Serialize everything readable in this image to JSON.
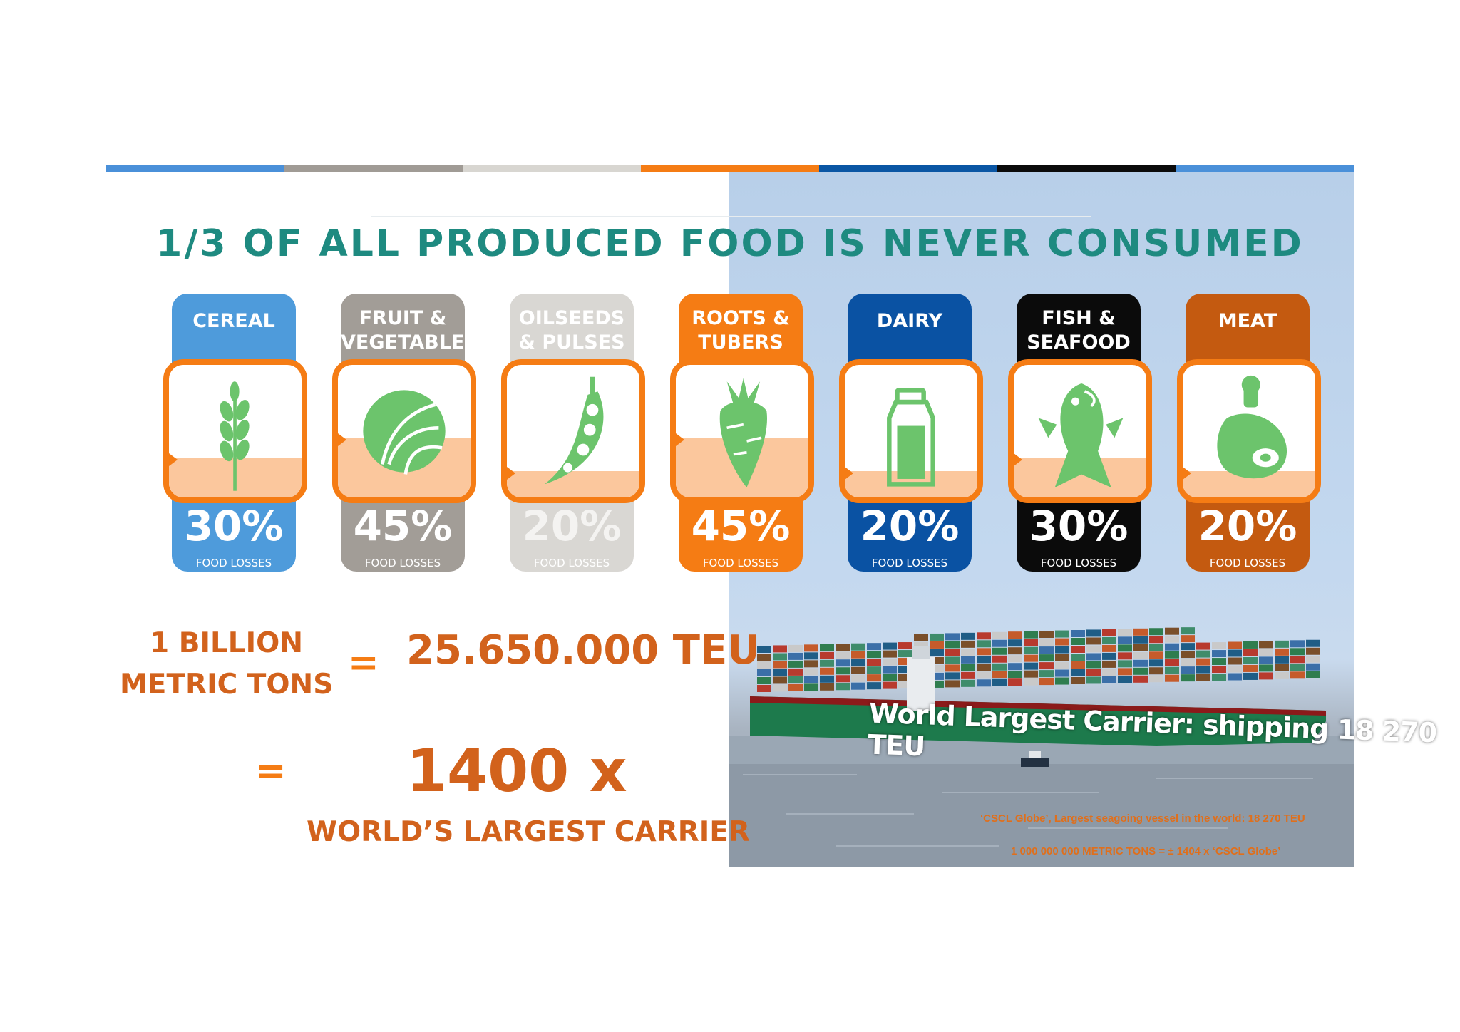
{
  "strip_colors": [
    "#4a90d9",
    "#a09b95",
    "#d8d6d1",
    "#f57c14",
    "#0a56a4",
    "#0b0b0b",
    "#4a90d9"
  ],
  "title": "1/3 OF ALL PRODUCED FOOD IS NEVER CONSUMED",
  "categories": [
    {
      "label_lines": [
        "CEREAL"
      ],
      "percent": "30%",
      "sublabel": "FOOD LOSSES",
      "color": "#4e9bdb",
      "icon": "wheat-icon"
    },
    {
      "label_lines": [
        "FRUIT &",
        "VEGETABLES"
      ],
      "percent": "45%",
      "sublabel": "FOOD LOSSES",
      "color": "#a29d97",
      "icon": "lettuce-icon"
    },
    {
      "label_lines": [
        "OILSEEDS",
        "& PULSES"
      ],
      "percent": "20%",
      "sublabel": "FOOD LOSSES",
      "color": "#d9d7d3",
      "icon": "pea-pod-icon"
    },
    {
      "label_lines": [
        "ROOTS &",
        "TUBERS"
      ],
      "percent": "45%",
      "sublabel": "FOOD LOSSES",
      "color": "#f57c14",
      "icon": "carrot-icon"
    },
    {
      "label_lines": [
        "DAIRY"
      ],
      "percent": "20%",
      "sublabel": "FOOD LOSSES",
      "color": "#0a52a3",
      "icon": "milk-bottle-icon"
    },
    {
      "label_lines": [
        "FISH &",
        "SEAFOOD"
      ],
      "percent": "30%",
      "sublabel": "FOOD LOSSES",
      "color": "#0b0b0b",
      "icon": "fish-icon"
    },
    {
      "label_lines": [
        "MEAT"
      ],
      "percent": "20%",
      "sublabel": "FOOD LOSSES",
      "color": "#c45a10",
      "icon": "ham-icon"
    }
  ],
  "loss_fraction": [
    0.3,
    0.45,
    0.2,
    0.45,
    0.2,
    0.3,
    0.2
  ],
  "stats": {
    "tons_line1": "1 BILLION",
    "tons_line2": "METRIC TONS",
    "equals1": "=",
    "teu": "25.650.000 TEU",
    "equals2": "=",
    "multiplier": "1400 x",
    "carrier": "WORLD’S LARGEST CARRIER"
  },
  "photo": {
    "headline": "World Largest Carrier: shipping 18 270 TEU",
    "caption1": "‘CSCL Globe’, Largest seagoing vessel in the world: 18 270 TEU",
    "caption2": "1 000 000 000 METRIC TONS = ± 1404 x ‘CSCL Globe’"
  },
  "accent_color": "#f57c14",
  "icon_color": "#6cc46c"
}
